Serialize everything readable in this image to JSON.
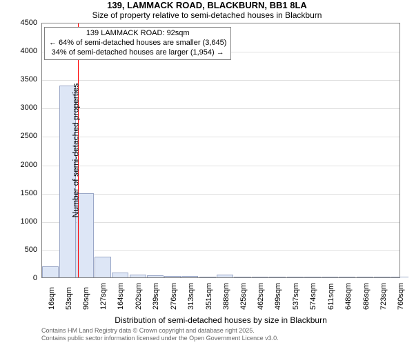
{
  "title": "139, LAMMACK ROAD, BLACKBURN, BB1 8LA",
  "subtitle": "Size of property relative to semi-detached houses in Blackburn",
  "chart": {
    "type": "histogram",
    "ylabel": "Number of semi-detached properties",
    "xlabel": "Distribution of semi-detached houses by size in Blackburn",
    "ylim": [
      0,
      4500
    ],
    "yticks": [
      0,
      500,
      1000,
      1500,
      2000,
      2500,
      3000,
      3500,
      4000,
      4500
    ],
    "x_display_min": 16,
    "x_display_max": 780,
    "xtick_values": [
      16,
      53,
      90,
      127,
      164,
      202,
      239,
      276,
      313,
      351,
      388,
      425,
      462,
      499,
      537,
      574,
      611,
      648,
      686,
      723,
      760
    ],
    "xtick_labels": [
      "16sqm",
      "53sqm",
      "90sqm",
      "127sqm",
      "164sqm",
      "202sqm",
      "239sqm",
      "276sqm",
      "313sqm",
      "351sqm",
      "388sqm",
      "425sqm",
      "462sqm",
      "499sqm",
      "537sqm",
      "574sqm",
      "611sqm",
      "648sqm",
      "686sqm",
      "723sqm",
      "760sqm"
    ],
    "bar_bin_width_sqm": 37,
    "bars": [
      {
        "x": 16,
        "value": 200
      },
      {
        "x": 53,
        "value": 3380
      },
      {
        "x": 90,
        "value": 1480
      },
      {
        "x": 127,
        "value": 370
      },
      {
        "x": 164,
        "value": 90
      },
      {
        "x": 202,
        "value": 45
      },
      {
        "x": 239,
        "value": 35
      },
      {
        "x": 276,
        "value": 28
      },
      {
        "x": 313,
        "value": 20
      },
      {
        "x": 351,
        "value": 18
      },
      {
        "x": 388,
        "value": 45
      },
      {
        "x": 425,
        "value": 8
      },
      {
        "x": 462,
        "value": 6
      },
      {
        "x": 499,
        "value": 5
      },
      {
        "x": 537,
        "value": 4
      },
      {
        "x": 574,
        "value": 3
      },
      {
        "x": 611,
        "value": 3
      },
      {
        "x": 648,
        "value": 2
      },
      {
        "x": 686,
        "value": 2
      },
      {
        "x": 723,
        "value": 2
      },
      {
        "x": 760,
        "value": 2
      }
    ],
    "bar_fill": "#dde6f6",
    "bar_stroke": "#9aa7c7",
    "grid_color": "#e0e0e0",
    "axis_color": "#808080",
    "background": "#ffffff",
    "marker_value_sqm": 92,
    "marker_color": "#ff0000",
    "annotation": {
      "line1": "139 LAMMACK ROAD: 92sqm",
      "line2": "← 64% of semi-detached houses are smaller (3,645)",
      "line3": "34% of semi-detached houses are larger (1,954) →",
      "box_border": "#808080",
      "box_bg": "#ffffff",
      "fontsize": 11
    }
  },
  "footnote": {
    "line1": "Contains HM Land Registry data © Crown copyright and database right 2025.",
    "line2": "Contains public sector information licensed under the Open Government Licence v3.0.",
    "color": "#666666"
  }
}
